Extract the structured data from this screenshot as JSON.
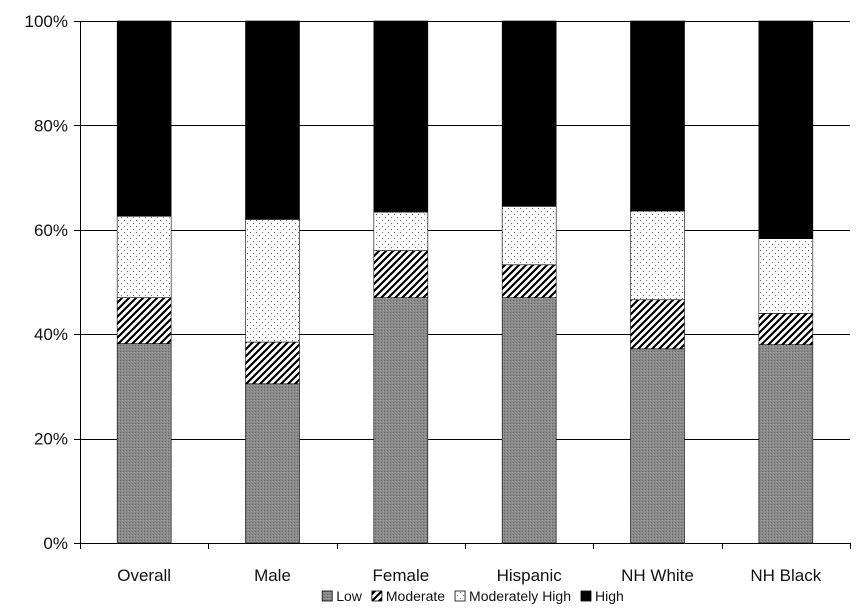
{
  "chart_data": {
    "type": "bar",
    "stacked": true,
    "categories": [
      "Overall",
      "Male",
      "Female",
      "Hispanic",
      "NH White",
      "NH Black"
    ],
    "series": [
      {
        "name": "Low",
        "values": [
          38.2,
          30.5,
          47.0,
          47.0,
          37.2,
          38.0
        ],
        "pattern": "gray-stipple",
        "color": "#7f7f7f"
      },
      {
        "name": "Moderate",
        "values": [
          8.8,
          8.0,
          9.0,
          6.3,
          9.4,
          6.0
        ],
        "pattern": "diagonal-hatch",
        "color": "#000000"
      },
      {
        "name": "Moderately High",
        "values": [
          15.6,
          23.5,
          7.4,
          11.2,
          17.0,
          14.3
        ],
        "pattern": "dots",
        "color": "#ffffff"
      },
      {
        "name": "High",
        "values": [
          37.4,
          38.0,
          36.6,
          35.5,
          36.4,
          41.7
        ],
        "pattern": "solid",
        "color": "#000000"
      }
    ],
    "yticks": [
      "0%",
      "20%",
      "40%",
      "60%",
      "80%",
      "100%"
    ],
    "ylim": [
      0,
      100
    ],
    "grid": true,
    "legend": "bottom",
    "title": "",
    "xlabel": "",
    "ylabel": ""
  }
}
